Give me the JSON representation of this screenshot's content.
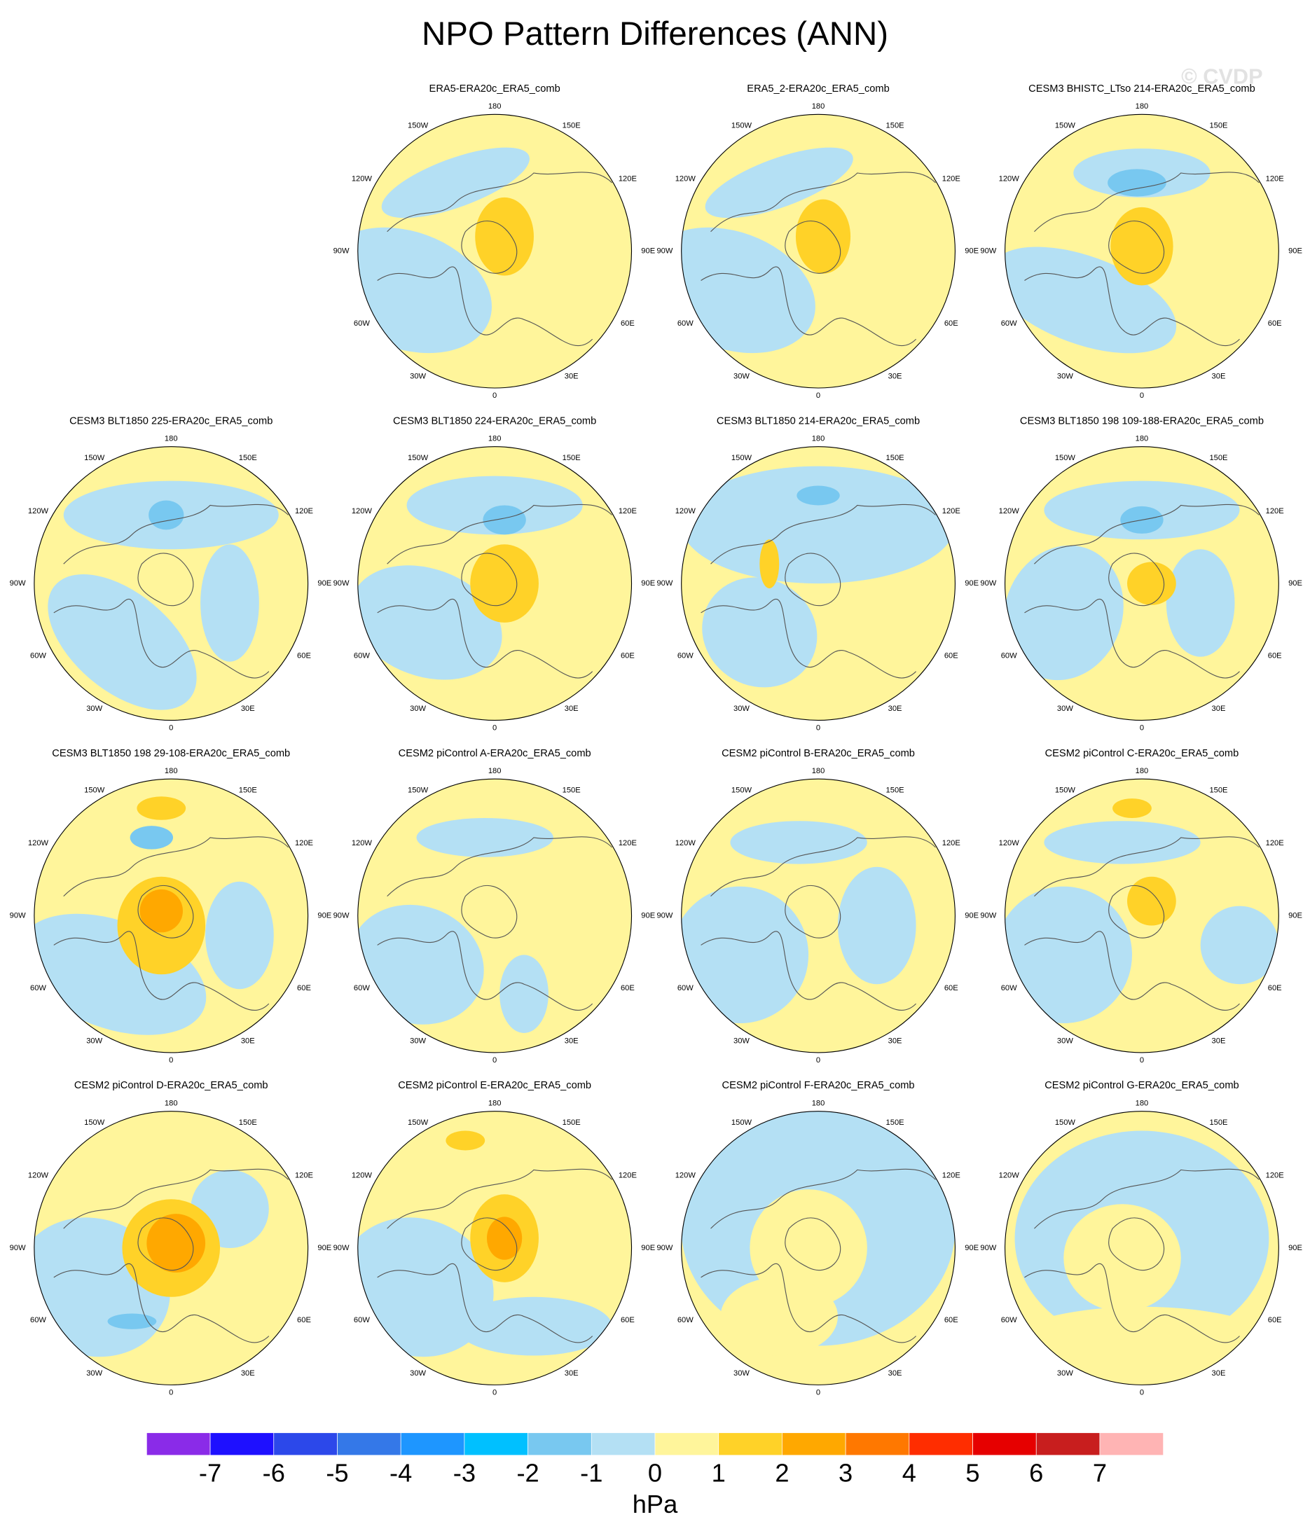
{
  "title": "NPO Pattern Differences (ANN)",
  "watermark": "© CVDP",
  "lon_labels": [
    "180",
    "150E",
    "120E",
    "90E",
    "60E",
    "30E",
    "0",
    "30W",
    "60W",
    "90W",
    "120W",
    "150W"
  ],
  "panels": [
    {
      "title": "ERA5-ERA20c_ERA5_comb"
    },
    {
      "title": "ERA5_2-ERA20c_ERA5_comb"
    },
    {
      "title": "CESM3 BHISTC_LTso 214-ERA20c_ERA5_comb"
    },
    {
      "title": "CESM3 BLT1850 225-ERA20c_ERA5_comb"
    },
    {
      "title": "CESM3 BLT1850 224-ERA20c_ERA5_comb"
    },
    {
      "title": "CESM3 BLT1850 214-ERA20c_ERA5_comb"
    },
    {
      "title": "CESM3 BLT1850 198 109-188-ERA20c_ERA5_comb"
    },
    {
      "title": "CESM3 BLT1850 198 29-108-ERA20c_ERA5_comb"
    },
    {
      "title": "CESM2 piControl A-ERA20c_ERA5_comb"
    },
    {
      "title": "CESM2 piControl B-ERA20c_ERA5_comb"
    },
    {
      "title": "CESM2 piControl C-ERA20c_ERA5_comb"
    },
    {
      "title": "CESM2 piControl D-ERA20c_ERA5_comb"
    },
    {
      "title": "CESM2 piControl E-ERA20c_ERA5_comb"
    },
    {
      "title": "CESM2 piControl F-ERA20c_ERA5_comb"
    },
    {
      "title": "CESM2 piControl G-ERA20c_ERA5_comb"
    }
  ],
  "colorbar": {
    "colors": [
      "#8a2be8",
      "#1e10ff",
      "#2c48ea",
      "#3478e8",
      "#1e96ff",
      "#00c0ff",
      "#78c8f0",
      "#b4e0f4",
      "#fff59b",
      "#ffd228",
      "#ffa800",
      "#ff7800",
      "#ff2d00",
      "#e60000",
      "#c81e1e",
      "#ffb4b4"
    ],
    "labels": [
      -7,
      -6,
      -5,
      -4,
      -3,
      -2,
      -1,
      0,
      1,
      2,
      3,
      4,
      5,
      6,
      7
    ],
    "units": "hPa"
  }
}
